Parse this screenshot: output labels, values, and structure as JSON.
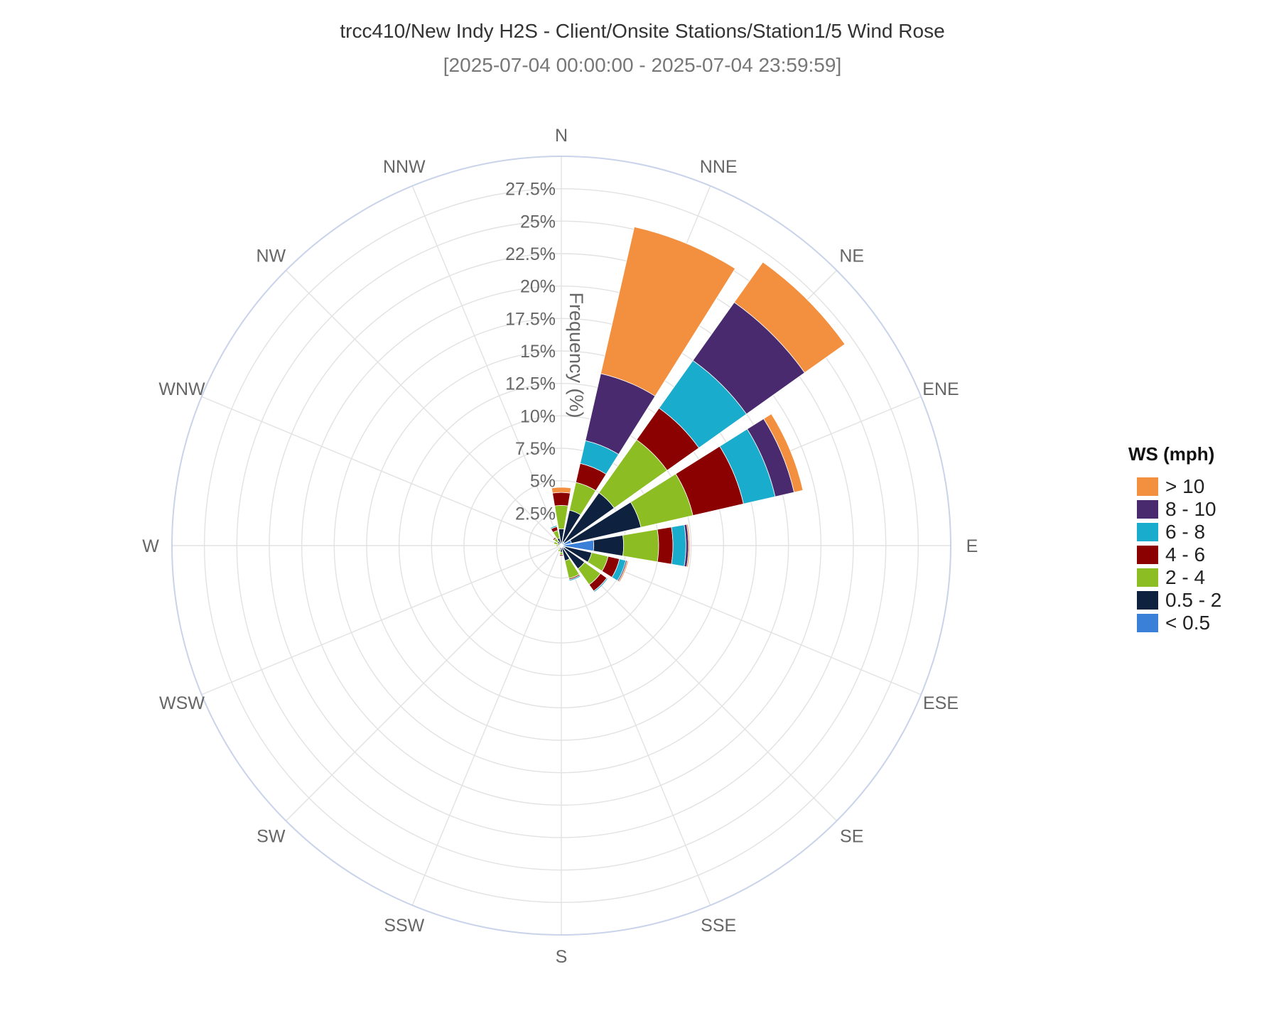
{
  "chart_data": {
    "type": "wind-rose",
    "title": "trcc410/New Indy H2S - Client/Onsite Stations/Station1/5 Wind Rose",
    "subtitle": "[2025-07-04 00:00:00 - 2025-07-04 23:59:59]",
    "radial_axis_title": "Frequency (%)",
    "radial_range": [
      0,
      30
    ],
    "radial_ticks": [
      2.5,
      5,
      7.5,
      10,
      12.5,
      15,
      17.5,
      20,
      22.5,
      25,
      27.5
    ],
    "radial_tick_labels": [
      "2.5%",
      "5%",
      "7.5%",
      "10%",
      "12.5%",
      "15%",
      "17.5%",
      "20%",
      "22.5%",
      "25%",
      "27.5%"
    ],
    "directions": [
      "N",
      "NNE",
      "NE",
      "ENE",
      "E",
      "ESE",
      "SE",
      "SSE",
      "S",
      "SSW",
      "SW",
      "WSW",
      "W",
      "WNW",
      "NW",
      "NNW"
    ],
    "legend_title": "WS (mph)",
    "legend_position": "right",
    "stack_order": [
      "< 0.5",
      "0.5 - 2",
      "2 - 4",
      "4 - 6",
      "6 - 8",
      "8 - 10",
      "> 10"
    ],
    "legend_order": [
      "> 10",
      "8 - 10",
      "6 - 8",
      "4 - 6",
      "2 - 4",
      "0.5 - 2",
      "< 0.5"
    ],
    "colors": {
      "< 0.5": "#3a7fd8",
      "0.5 - 2": "#0e2240",
      "2 - 4": "#8cbd22",
      "4 - 6": "#8b0000",
      "6 - 8": "#1aaccc",
      "8 - 10": "#4a2a6e",
      "> 10": "#f39040"
    },
    "series": [
      {
        "name": "< 0.5",
        "values": [
          0,
          0.3,
          0.3,
          0.8,
          2.5,
          0.3,
          0.2,
          0.1,
          0,
          0,
          0,
          0,
          0,
          0,
          0,
          0
        ]
      },
      {
        "name": "0.5 - 2",
        "values": [
          1.3,
          2.5,
          4.7,
          5.5,
          2.3,
          2.1,
          2.0,
          1.1,
          0.5,
          0.3,
          0.2,
          0.1,
          0.2,
          0.3,
          0.4,
          0.6
        ]
      },
      {
        "name": "2 - 4",
        "values": [
          1.8,
          2.2,
          5.0,
          4.1,
          2.7,
          1.3,
          1.5,
          1.4,
          0.2,
          0.2,
          0.1,
          0.1,
          0.2,
          0.3,
          0.3,
          0.6
        ]
      },
      {
        "name": "4 - 6",
        "values": [
          1.0,
          1.5,
          3.0,
          4.0,
          1.1,
          0.9,
          0.6,
          0.1,
          0.1,
          0,
          0,
          0,
          0,
          0,
          0.1,
          0.3
        ]
      },
      {
        "name": "6 - 8",
        "values": [
          0,
          1.8,
          4.5,
          2.5,
          1.0,
          0.5,
          0.1,
          0.1,
          0,
          0,
          0,
          0,
          0,
          0,
          0,
          0.1
        ]
      },
      {
        "name": "8 - 10",
        "values": [
          0,
          5.3,
          5.5,
          1.5,
          0.2,
          0.1,
          0,
          0,
          0,
          0,
          0,
          0,
          0,
          0,
          0,
          0
        ]
      },
      {
        "name": "> 10",
        "values": [
          0.4,
          11.6,
          3.8,
          0.7,
          0.1,
          0.1,
          0,
          0,
          0,
          0,
          0,
          0,
          0,
          0,
          0,
          0
        ]
      }
    ],
    "grid": true
  }
}
